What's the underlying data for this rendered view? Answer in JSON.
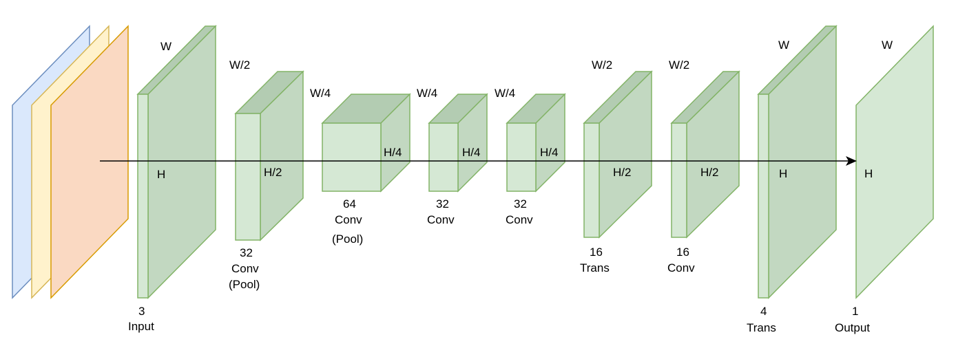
{
  "diagram": {
    "input_channels": {
      "colors": [
        "#dae8fc",
        "#fff2cc",
        "#fad9c2"
      ],
      "strokes": [
        "#6c8ebf",
        "#d6b656",
        "#d79b00"
      ]
    },
    "layers": [
      {
        "id": "input",
        "w_label": "W",
        "h_label": "H",
        "caption": [
          "3",
          "Input"
        ]
      },
      {
        "id": "conv1",
        "w_label": "W/2",
        "h_label": "H/2",
        "caption": [
          "32",
          "Conv",
          "(Pool)"
        ]
      },
      {
        "id": "conv2",
        "w_label": "W/4",
        "h_label": "H/4",
        "caption": [
          "64",
          "Conv",
          "(Pool)"
        ]
      },
      {
        "id": "conv3",
        "w_label": "W/4",
        "h_label": "H/4",
        "caption": [
          "32",
          "Conv"
        ]
      },
      {
        "id": "conv4",
        "w_label": "W/4",
        "h_label": "H/4",
        "caption": [
          "32",
          "Conv"
        ]
      },
      {
        "id": "trans1",
        "w_label": "W/2",
        "h_label": "H/2",
        "caption": [
          "16",
          "Trans"
        ]
      },
      {
        "id": "conv5",
        "w_label": "W/2",
        "h_label": "H/2",
        "caption": [
          "16",
          "Conv"
        ]
      },
      {
        "id": "trans2",
        "w_label": "W",
        "h_label": "H",
        "caption": [
          "4",
          "Trans"
        ]
      },
      {
        "id": "output",
        "w_label": "W",
        "h_label": "H",
        "caption": [
          "1",
          "Output"
        ]
      }
    ],
    "colors": {
      "fill": "#d5e8d4",
      "stroke": "#82b366",
      "arrow": "#000000"
    }
  }
}
